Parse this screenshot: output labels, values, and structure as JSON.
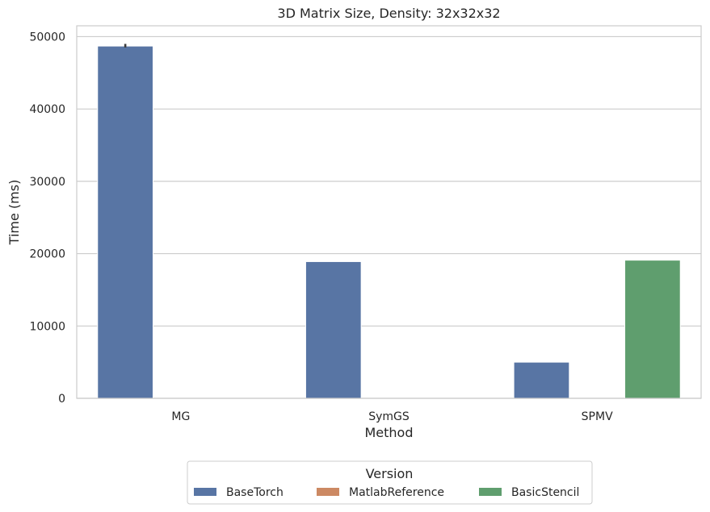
{
  "chart_data": {
    "type": "bar",
    "title": "3D Matrix Size, Density: 32x32x32",
    "xlabel": "Method",
    "ylabel": "Time (ms)",
    "categories": [
      "MG",
      "SymGS",
      "SPMV"
    ],
    "series": [
      {
        "name": "BaseTorch",
        "values": [
          48700,
          18900,
          5000
        ],
        "color": "#5875a4"
      },
      {
        "name": "MatlabReference",
        "values": [
          0,
          0,
          0
        ],
        "color": "#cc8963"
      },
      {
        "name": "BasicStencil",
        "values": [
          0,
          0,
          19100
        ],
        "color": "#5f9e6e"
      }
    ],
    "error_bars": [
      {
        "series": "BaseTorch",
        "category": "MG",
        "low": 48500,
        "high": 49000
      }
    ],
    "ylim": [
      0,
      51500
    ],
    "yticks": [
      0,
      10000,
      20000,
      30000,
      40000,
      50000
    ],
    "grid": true,
    "legend": {
      "title": "Version",
      "placement": "bottom-center"
    }
  }
}
